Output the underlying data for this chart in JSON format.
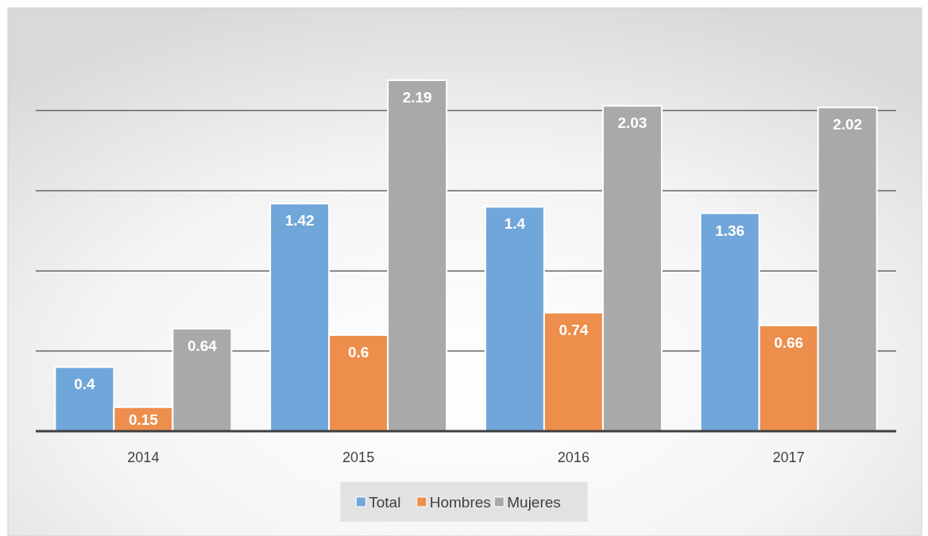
{
  "chart_data": {
    "type": "bar",
    "categories": [
      "2014",
      "2015",
      "2016",
      "2017"
    ],
    "series": [
      {
        "name": "Total",
        "color": "#70a6da",
        "values": [
          0.4,
          1.42,
          1.4,
          1.36
        ]
      },
      {
        "name": "Hombres",
        "color": "#ed8e4c",
        "values": [
          0.15,
          0.6,
          0.74,
          0.66
        ]
      },
      {
        "name": "Mujeres",
        "color": "#a9a9a9",
        "values": [
          0.64,
          2.19,
          2.03,
          2.02
        ]
      }
    ],
    "ylim": [
      0,
      2.2
    ],
    "yticks": [
      {
        "value": 0,
        "label": null
      },
      {
        "value": 0.5,
        "label": null
      },
      {
        "value": 1,
        "label": null
      },
      {
        "value": 1.5,
        "label": null
      },
      {
        "value": 2,
        "label": null
      }
    ],
    "tick_labels": "x",
    "grid": "y",
    "legend": "bottom",
    "data_labels": true
  }
}
